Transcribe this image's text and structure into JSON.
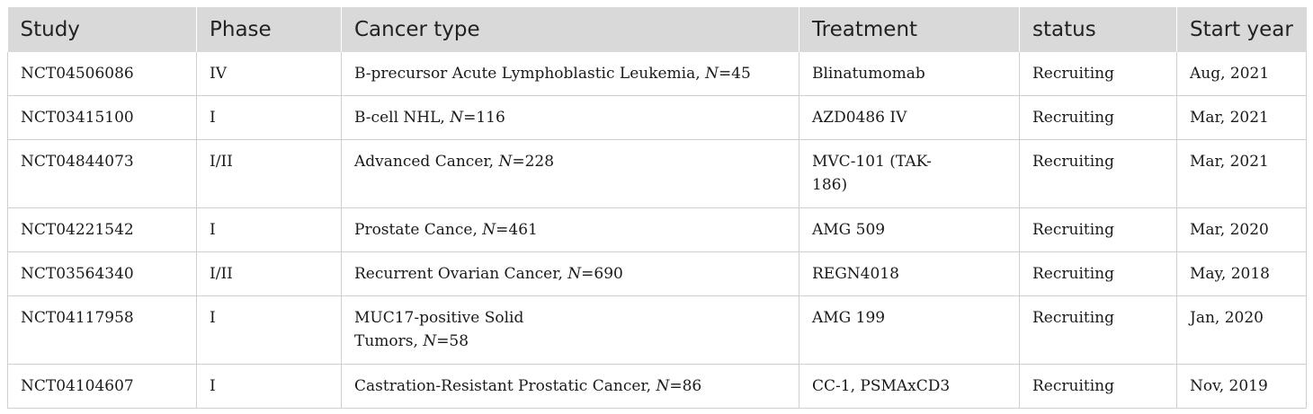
{
  "table": {
    "headers": {
      "study": "Study",
      "phase": "Phase",
      "cancer_type": "Cancer type",
      "treatment": "Treatment",
      "status": "status",
      "start_year": "Start year"
    },
    "n_label": "N",
    "rows": [
      {
        "study": "NCT04506086",
        "phase": "IV",
        "cancer": "B-precursor Acute Lymphoblastic Leukemia, ",
        "n": "=45",
        "treatment": "Blinatumomab",
        "status": "Recruiting",
        "start": "Aug, 2021"
      },
      {
        "study": "NCT03415100",
        "phase": "I",
        "cancer": "B-cell NHL, ",
        "n": "=116",
        "treatment": "AZD0486 IV",
        "status": "Recruiting",
        "start": "Mar, 2021"
      },
      {
        "study": "NCT04844073",
        "phase": "I/II",
        "cancer": "Advanced Cancer, ",
        "n": "=228",
        "treatment": "MVC-101 (TAK-186)",
        "status": "Recruiting",
        "start": "Mar, 2021"
      },
      {
        "study": "NCT04221542",
        "phase": "I",
        "cancer": "Prostate Cance, ",
        "n": "=461",
        "treatment": "AMG 509",
        "status": "Recruiting",
        "start": "Mar, 2020"
      },
      {
        "study": "NCT03564340",
        "phase": "I/II",
        "cancer": "Recurrent Ovarian Cancer, ",
        "n": "=690",
        "treatment": "REGN4018",
        "status": "Recruiting",
        "start": "May, 2018"
      },
      {
        "study": "NCT04117958",
        "phase": "I",
        "cancer": "MUC17-positive Solid Tumors, ",
        "n": "=58",
        "treatment": "AMG 199",
        "status": "Recruiting",
        "start": "Jan, 2020"
      },
      {
        "study": "NCT04104607",
        "phase": "I",
        "cancer": "Castration-Resistant Prostatic Cancer, ",
        "n": "=86",
        "treatment": "CC-1, PSMAxCD3",
        "status": "Recruiting",
        "start": "Nov, 2019"
      }
    ]
  },
  "colors": {
    "header_bg": "#d9d9d9",
    "border": "#cfcfcf",
    "text": "#1a1a1a"
  }
}
